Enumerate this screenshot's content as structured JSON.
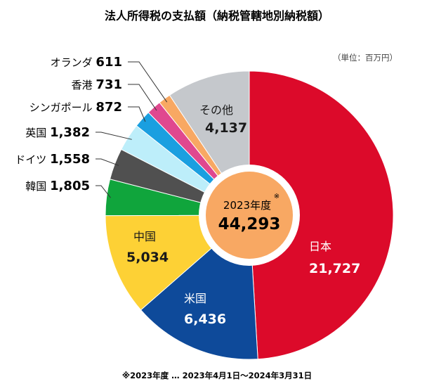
{
  "chart_data": {
    "type": "pie",
    "title": "法人所得税の支払額（納税管轄地別納税額）",
    "unit": "（単位：百万円）",
    "center": {
      "label": "2023年度",
      "mark": "※",
      "total": "44,293"
    },
    "footnote": "※2023年度 … 2023年4月1日～2024年3月31日",
    "slices": [
      {
        "name": "日本",
        "value": 21727,
        "display": "21,727",
        "color": "#dc0a2a",
        "label_pos": "inside",
        "text_color": "#ffffff"
      },
      {
        "name": "米国",
        "value": 6436,
        "display": "6,436",
        "color": "#0e4a9a",
        "label_pos": "inside",
        "text_color": "#ffffff"
      },
      {
        "name": "中国",
        "value": 5034,
        "display": "5,034",
        "color": "#fdd135",
        "label_pos": "inside",
        "text_color": "#1a1a1a"
      },
      {
        "name": "韓国",
        "value": 1805,
        "display": "1,805",
        "color": "#10a53c",
        "label_pos": "outside",
        "text_color": "#1a1a1a"
      },
      {
        "name": "ドイツ",
        "value": 1558,
        "display": "1,558",
        "color": "#505050",
        "label_pos": "outside",
        "text_color": "#1a1a1a"
      },
      {
        "name": "英国",
        "value": 1382,
        "display": "1,382",
        "color": "#bdeefa",
        "label_pos": "outside",
        "text_color": "#1a1a1a"
      },
      {
        "name": "シンガポール",
        "value": 872,
        "display": "872",
        "color": "#1a9fe0",
        "label_pos": "outside",
        "text_color": "#1a1a1a"
      },
      {
        "name": "香港",
        "value": 731,
        "display": "731",
        "color": "#e0488f",
        "label_pos": "outside",
        "text_color": "#1a1a1a"
      },
      {
        "name": "オランダ",
        "value": 611,
        "display": "611",
        "color": "#f8a863",
        "label_pos": "outside",
        "text_color": "#1a1a1a"
      },
      {
        "name": "その他",
        "value": 4137,
        "display": "4,137",
        "color": "#c5c8cc",
        "label_pos": "inside",
        "text_color": "#1a1a1a"
      }
    ]
  }
}
